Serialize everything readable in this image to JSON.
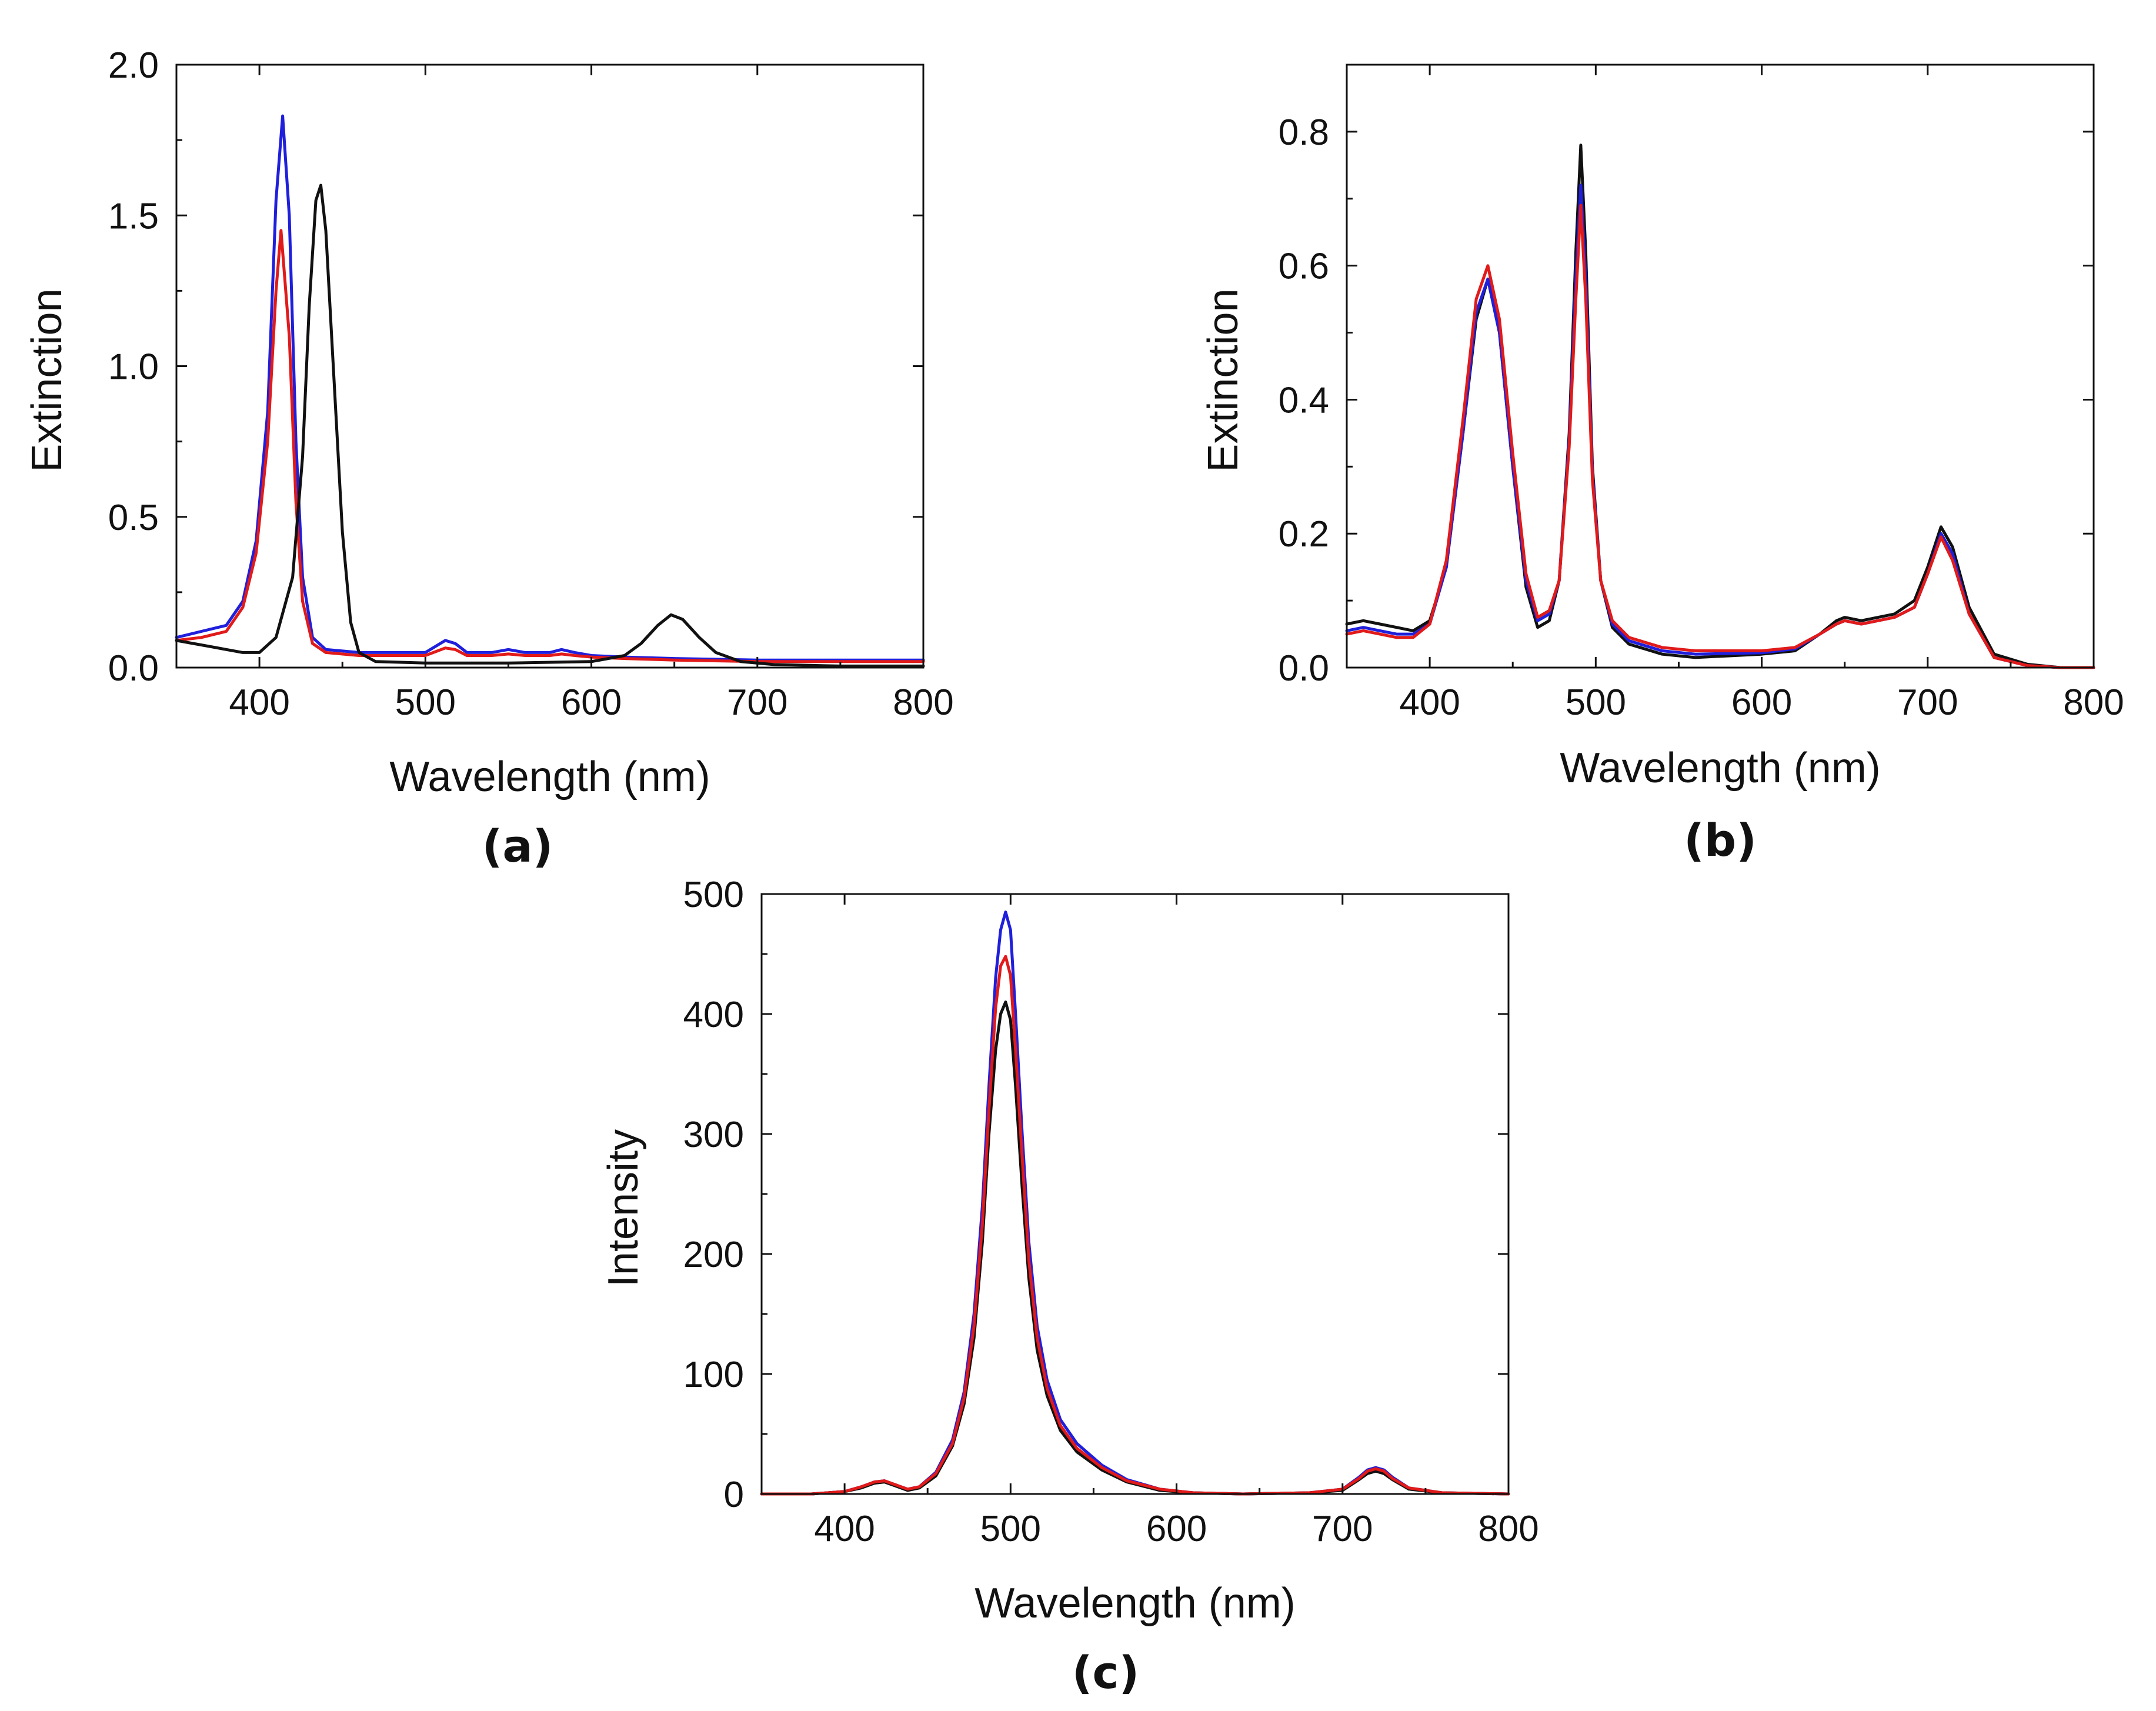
{
  "chart_data": [
    {
      "type": "line",
      "panel_label": "(a)",
      "xlabel": "Wavelength (nm)",
      "ylabel": "Extinction",
      "xlim": [
        350,
        800
      ],
      "ylim": [
        0,
        2.0
      ],
      "xticks": [
        400,
        500,
        600,
        700,
        800
      ],
      "xtick_labels": [
        "400",
        "500",
        "600",
        "700",
        "800"
      ],
      "yticks": [
        0,
        0.5,
        1.0,
        1.5,
        2.0
      ],
      "ytick_labels": [
        "0.0",
        "0.5",
        "1.0",
        "1.5",
        "2.0"
      ],
      "grid": false,
      "series": [
        {
          "name": "blue",
          "color": "#1f1fdc",
          "x": [
            350,
            365,
            380,
            390,
            398,
            405,
            410,
            414,
            418,
            422,
            426,
            432,
            440,
            460,
            500,
            512,
            518,
            525,
            540,
            550,
            560,
            575,
            582,
            590,
            600,
            620,
            650,
            700,
            750,
            800
          ],
          "y": [
            0.1,
            0.12,
            0.14,
            0.22,
            0.42,
            0.85,
            1.55,
            1.83,
            1.5,
            0.75,
            0.3,
            0.1,
            0.06,
            0.05,
            0.05,
            0.09,
            0.08,
            0.05,
            0.05,
            0.06,
            0.05,
            0.05,
            0.06,
            0.05,
            0.04,
            0.035,
            0.03,
            0.025,
            0.025,
            0.025
          ]
        },
        {
          "name": "red",
          "color": "#e11a1a",
          "x": [
            350,
            365,
            380,
            390,
            398,
            405,
            410,
            413,
            418,
            422,
            426,
            432,
            440,
            460,
            500,
            512,
            518,
            525,
            540,
            550,
            560,
            575,
            582,
            590,
            600,
            620,
            650,
            700,
            750,
            800
          ],
          "y": [
            0.09,
            0.1,
            0.12,
            0.2,
            0.38,
            0.75,
            1.25,
            1.45,
            1.1,
            0.55,
            0.22,
            0.08,
            0.05,
            0.04,
            0.04,
            0.065,
            0.06,
            0.04,
            0.04,
            0.045,
            0.04,
            0.04,
            0.045,
            0.04,
            0.035,
            0.03,
            0.025,
            0.02,
            0.02,
            0.02
          ]
        },
        {
          "name": "black",
          "color": "#111111",
          "x": [
            350,
            360,
            370,
            380,
            390,
            400,
            410,
            420,
            426,
            430,
            434,
            437,
            440,
            445,
            450,
            455,
            460,
            470,
            500,
            550,
            600,
            620,
            630,
            640,
            648,
            655,
            665,
            675,
            690,
            710,
            750,
            800
          ],
          "y": [
            0.09,
            0.08,
            0.07,
            0.06,
            0.05,
            0.05,
            0.1,
            0.3,
            0.7,
            1.2,
            1.55,
            1.6,
            1.45,
            0.95,
            0.45,
            0.15,
            0.05,
            0.02,
            0.015,
            0.015,
            0.02,
            0.04,
            0.08,
            0.14,
            0.175,
            0.16,
            0.1,
            0.05,
            0.02,
            0.01,
            0.005,
            0.005
          ]
        }
      ]
    },
    {
      "type": "line",
      "panel_label": "(b)",
      "xlabel": "Wavelength (nm)",
      "ylabel": "Extinction",
      "xlim": [
        350,
        800
      ],
      "ylim": [
        0,
        0.9
      ],
      "xticks": [
        400,
        500,
        600,
        700,
        800
      ],
      "xtick_labels": [
        "400",
        "500",
        "600",
        "700",
        "800"
      ],
      "yticks": [
        0,
        0.2,
        0.4,
        0.6,
        0.8
      ],
      "ytick_labels": [
        "0.0",
        "0.2",
        "0.4",
        "0.6",
        "0.8"
      ],
      "grid": false,
      "series": [
        {
          "name": "black",
          "color": "#111111",
          "x": [
            350,
            360,
            370,
            380,
            390,
            400,
            410,
            420,
            428,
            435,
            442,
            450,
            458,
            465,
            472,
            478,
            484,
            488,
            491,
            494,
            498,
            503,
            510,
            520,
            540,
            560,
            600,
            620,
            635,
            645,
            650,
            660,
            680,
            692,
            700,
            708,
            715,
            725,
            740,
            760,
            780,
            800
          ],
          "y": [
            0.065,
            0.07,
            0.065,
            0.06,
            0.055,
            0.07,
            0.15,
            0.35,
            0.52,
            0.58,
            0.5,
            0.3,
            0.12,
            0.06,
            0.07,
            0.13,
            0.35,
            0.62,
            0.78,
            0.62,
            0.3,
            0.13,
            0.06,
            0.035,
            0.02,
            0.015,
            0.02,
            0.025,
            0.05,
            0.07,
            0.075,
            0.07,
            0.08,
            0.1,
            0.15,
            0.21,
            0.18,
            0.09,
            0.02,
            0.005,
            0.0,
            0.0
          ]
        },
        {
          "name": "blue",
          "color": "#1f1fdc",
          "x": [
            350,
            360,
            370,
            380,
            390,
            400,
            410,
            420,
            428,
            435,
            442,
            450,
            458,
            465,
            472,
            478,
            484,
            488,
            491,
            494,
            498,
            503,
            510,
            520,
            540,
            560,
            600,
            620,
            635,
            645,
            650,
            660,
            680,
            692,
            700,
            708,
            715,
            725,
            740,
            760,
            780,
            800
          ],
          "y": [
            0.055,
            0.06,
            0.055,
            0.05,
            0.05,
            0.065,
            0.15,
            0.35,
            0.53,
            0.58,
            0.5,
            0.3,
            0.13,
            0.07,
            0.08,
            0.13,
            0.34,
            0.58,
            0.72,
            0.58,
            0.29,
            0.13,
            0.065,
            0.04,
            0.025,
            0.02,
            0.022,
            0.028,
            0.05,
            0.065,
            0.07,
            0.065,
            0.075,
            0.09,
            0.14,
            0.2,
            0.17,
            0.08,
            0.015,
            0.003,
            0.0,
            0.0
          ]
        },
        {
          "name": "red",
          "color": "#e11a1a",
          "x": [
            350,
            360,
            370,
            380,
            390,
            400,
            410,
            420,
            428,
            435,
            442,
            450,
            458,
            465,
            472,
            478,
            484,
            488,
            491,
            494,
            498,
            503,
            510,
            520,
            540,
            560,
            600,
            620,
            635,
            645,
            650,
            660,
            680,
            692,
            700,
            708,
            715,
            725,
            740,
            760,
            780,
            800
          ],
          "y": [
            0.05,
            0.055,
            0.05,
            0.045,
            0.045,
            0.065,
            0.16,
            0.37,
            0.55,
            0.6,
            0.52,
            0.32,
            0.14,
            0.075,
            0.085,
            0.13,
            0.33,
            0.55,
            0.69,
            0.55,
            0.28,
            0.13,
            0.07,
            0.045,
            0.03,
            0.025,
            0.025,
            0.03,
            0.05,
            0.065,
            0.07,
            0.065,
            0.075,
            0.09,
            0.14,
            0.195,
            0.16,
            0.08,
            0.015,
            0.003,
            0.0,
            0.0
          ]
        }
      ]
    },
    {
      "type": "line",
      "panel_label": "(c)",
      "xlabel": "Wavelength (nm)",
      "ylabel": "Intensity",
      "xlim": [
        350,
        800
      ],
      "ylim": [
        0,
        500
      ],
      "xticks": [
        400,
        500,
        600,
        700,
        800
      ],
      "xtick_labels": [
        "400",
        "500",
        "600",
        "700",
        "800"
      ],
      "yticks": [
        0,
        100,
        200,
        300,
        400,
        500
      ],
      "ytick_labels": [
        "0",
        "100",
        "200",
        "300",
        "400",
        "500"
      ],
      "grid": false,
      "series": [
        {
          "name": "blue",
          "color": "#1f1fdc",
          "x": [
            350,
            380,
            400,
            410,
            418,
            424,
            430,
            438,
            445,
            455,
            465,
            472,
            478,
            483,
            487,
            491,
            494,
            497,
            500,
            503,
            507,
            511,
            516,
            522,
            530,
            540,
            555,
            570,
            590,
            610,
            640,
            680,
            700,
            710,
            715,
            720,
            725,
            730,
            740,
            760,
            800
          ],
          "y": [
            0,
            0,
            2,
            6,
            10,
            11,
            8,
            4,
            6,
            18,
            45,
            85,
            150,
            240,
            340,
            430,
            470,
            485,
            470,
            400,
            300,
            210,
            140,
            95,
            62,
            42,
            24,
            12,
            4,
            1,
            0,
            1,
            4,
            14,
            20,
            22,
            20,
            14,
            5,
            1,
            0
          ]
        },
        {
          "name": "black",
          "color": "#111111",
          "x": [
            350,
            380,
            400,
            410,
            418,
            424,
            430,
            438,
            445,
            455,
            465,
            472,
            478,
            483,
            487,
            491,
            494,
            497,
            500,
            503,
            507,
            511,
            516,
            522,
            530,
            540,
            555,
            570,
            590,
            610,
            640,
            680,
            700,
            710,
            715,
            720,
            725,
            730,
            740,
            760,
            800
          ],
          "y": [
            0,
            0,
            2,
            5,
            9,
            10,
            7,
            3,
            5,
            15,
            40,
            75,
            130,
            210,
            300,
            370,
            400,
            410,
            395,
            340,
            255,
            180,
            120,
            82,
            53,
            35,
            20,
            10,
            3,
            1,
            0,
            1,
            3,
            12,
            17,
            19,
            17,
            12,
            4,
            1,
            0
          ]
        },
        {
          "name": "red",
          "color": "#e11a1a",
          "x": [
            350,
            380,
            400,
            410,
            418,
            424,
            430,
            438,
            445,
            455,
            465,
            472,
            478,
            483,
            487,
            491,
            494,
            497,
            500,
            503,
            507,
            511,
            516,
            522,
            530,
            540,
            555,
            570,
            590,
            610,
            640,
            680,
            700,
            710,
            715,
            720,
            725,
            730,
            740,
            760,
            800
          ],
          "y": [
            0,
            0,
            2,
            6,
            10,
            11,
            8,
            4,
            6,
            17,
            42,
            80,
            140,
            225,
            320,
            405,
            440,
            448,
            432,
            370,
            280,
            195,
            130,
            88,
            57,
            38,
            22,
            11,
            4,
            1,
            0,
            1,
            4,
            13,
            19,
            21,
            19,
            13,
            5,
            1,
            0
          ]
        }
      ]
    }
  ]
}
